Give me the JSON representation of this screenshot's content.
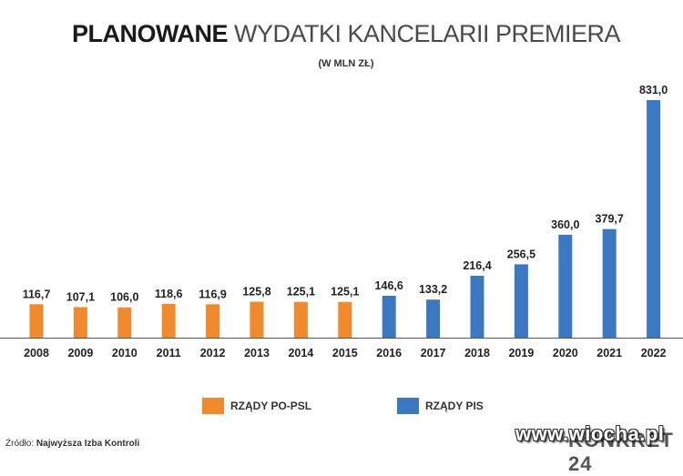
{
  "header": {
    "title_bold": "PLANOWANE",
    "title_rest": "WYDATKI KANCELARII PREMIERA",
    "subtitle": "(W MLN ZŁ)"
  },
  "chart_data": {
    "type": "bar",
    "title": "PLANOWANE WYDATKI KANCELARII PREMIERA",
    "subtitle": "(W MLN ZŁ)",
    "categories": [
      "2008",
      "2009",
      "2010",
      "2011",
      "2012",
      "2013",
      "2014",
      "2015",
      "2016",
      "2017",
      "2018",
      "2019",
      "2020",
      "2021",
      "2022"
    ],
    "values": [
      116.7,
      107.1,
      106.0,
      118.6,
      116.9,
      125.8,
      125.1,
      125.1,
      146.6,
      133.2,
      216.4,
      256.5,
      360.0,
      379.7,
      831.0
    ],
    "value_labels": [
      "116,7",
      "107,1",
      "106,0",
      "118,6",
      "116,9",
      "125,8",
      "125,1",
      "125,1",
      "146,6",
      "133,2",
      "216,4",
      "256,5",
      "360,0",
      "379,7",
      "831,0"
    ],
    "groups": [
      "PO-PSL",
      "PO-PSL",
      "PO-PSL",
      "PO-PSL",
      "PO-PSL",
      "PO-PSL",
      "PO-PSL",
      "PO-PSL",
      "PIS",
      "PIS",
      "PIS",
      "PIS",
      "PIS",
      "PIS",
      "PIS"
    ],
    "group_colors": {
      "PO-PSL": "#f08a2c",
      "PIS": "#3a78c2"
    },
    "ylim": [
      0,
      831
    ],
    "grid": false,
    "legend_position": "bottom"
  },
  "legend": {
    "items": [
      {
        "label": "RZĄDY PO-PSL",
        "color": "#f08a2c"
      },
      {
        "label": "RZĄDY PIS",
        "color": "#3a78c2"
      }
    ]
  },
  "footer": {
    "source_prefix": "Źródło:",
    "source_name": "Najwyższa Izba Kontroli",
    "brand": "KONKRET 24",
    "watermark": "www.wiocha.pl"
  }
}
